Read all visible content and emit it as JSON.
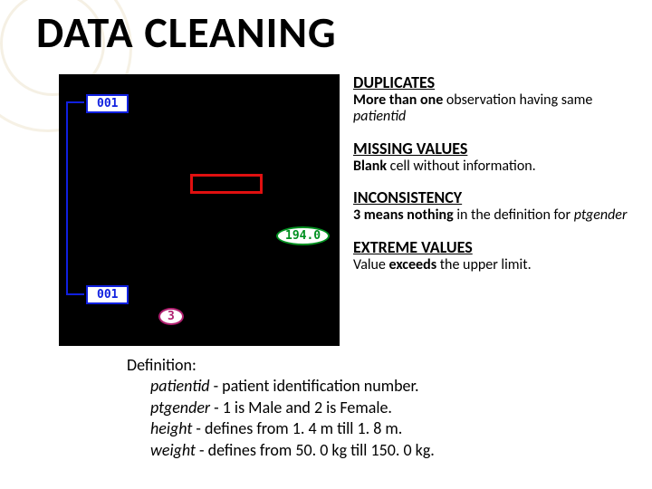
{
  "title": "DATA CLEANING",
  "diagram": {
    "patient_id_top": "001",
    "patient_id_bottom": "001",
    "extreme_weight": "194.0",
    "inconsistent_gender": "3",
    "box_highlight_color": "#e01010",
    "dup_highlight_color": "#1020e0",
    "extreme_highlight_color": "#009020",
    "inconsistency_highlight_color": "#b02070",
    "bg_color": "#000000"
  },
  "sections": {
    "dup": {
      "heading": "DUPLICATES",
      "line1": "More than one",
      "line2": " observation having same ",
      "ital": "patientid"
    },
    "miss": {
      "heading": "MISSING VALUES",
      "line1b": "Blank",
      "line1rest": " cell without information."
    },
    "incon": {
      "heading": "INCONSISTENCY",
      "line1b": "3 means nothing",
      "line1rest": " in the definition for ",
      "ital": "ptgender"
    },
    "extreme": {
      "heading": "EXTREME VALUES",
      "line1": "Value ",
      "line1b": "exceeds",
      "line1rest": " the upper limit."
    }
  },
  "definition": {
    "label": "Definition:",
    "l1_term": "patientid",
    "l1_text": " - patient identification number.",
    "l2_term": "ptgender",
    "l2_text": " - 1 is Male and 2 is Female.",
    "l3_term": "height",
    "l3_text": " - defines from 1. 4 m till 1. 8 m.",
    "l4_term": "weight",
    "l4_text": " - defines from 50. 0 kg till 150. 0 kg."
  }
}
